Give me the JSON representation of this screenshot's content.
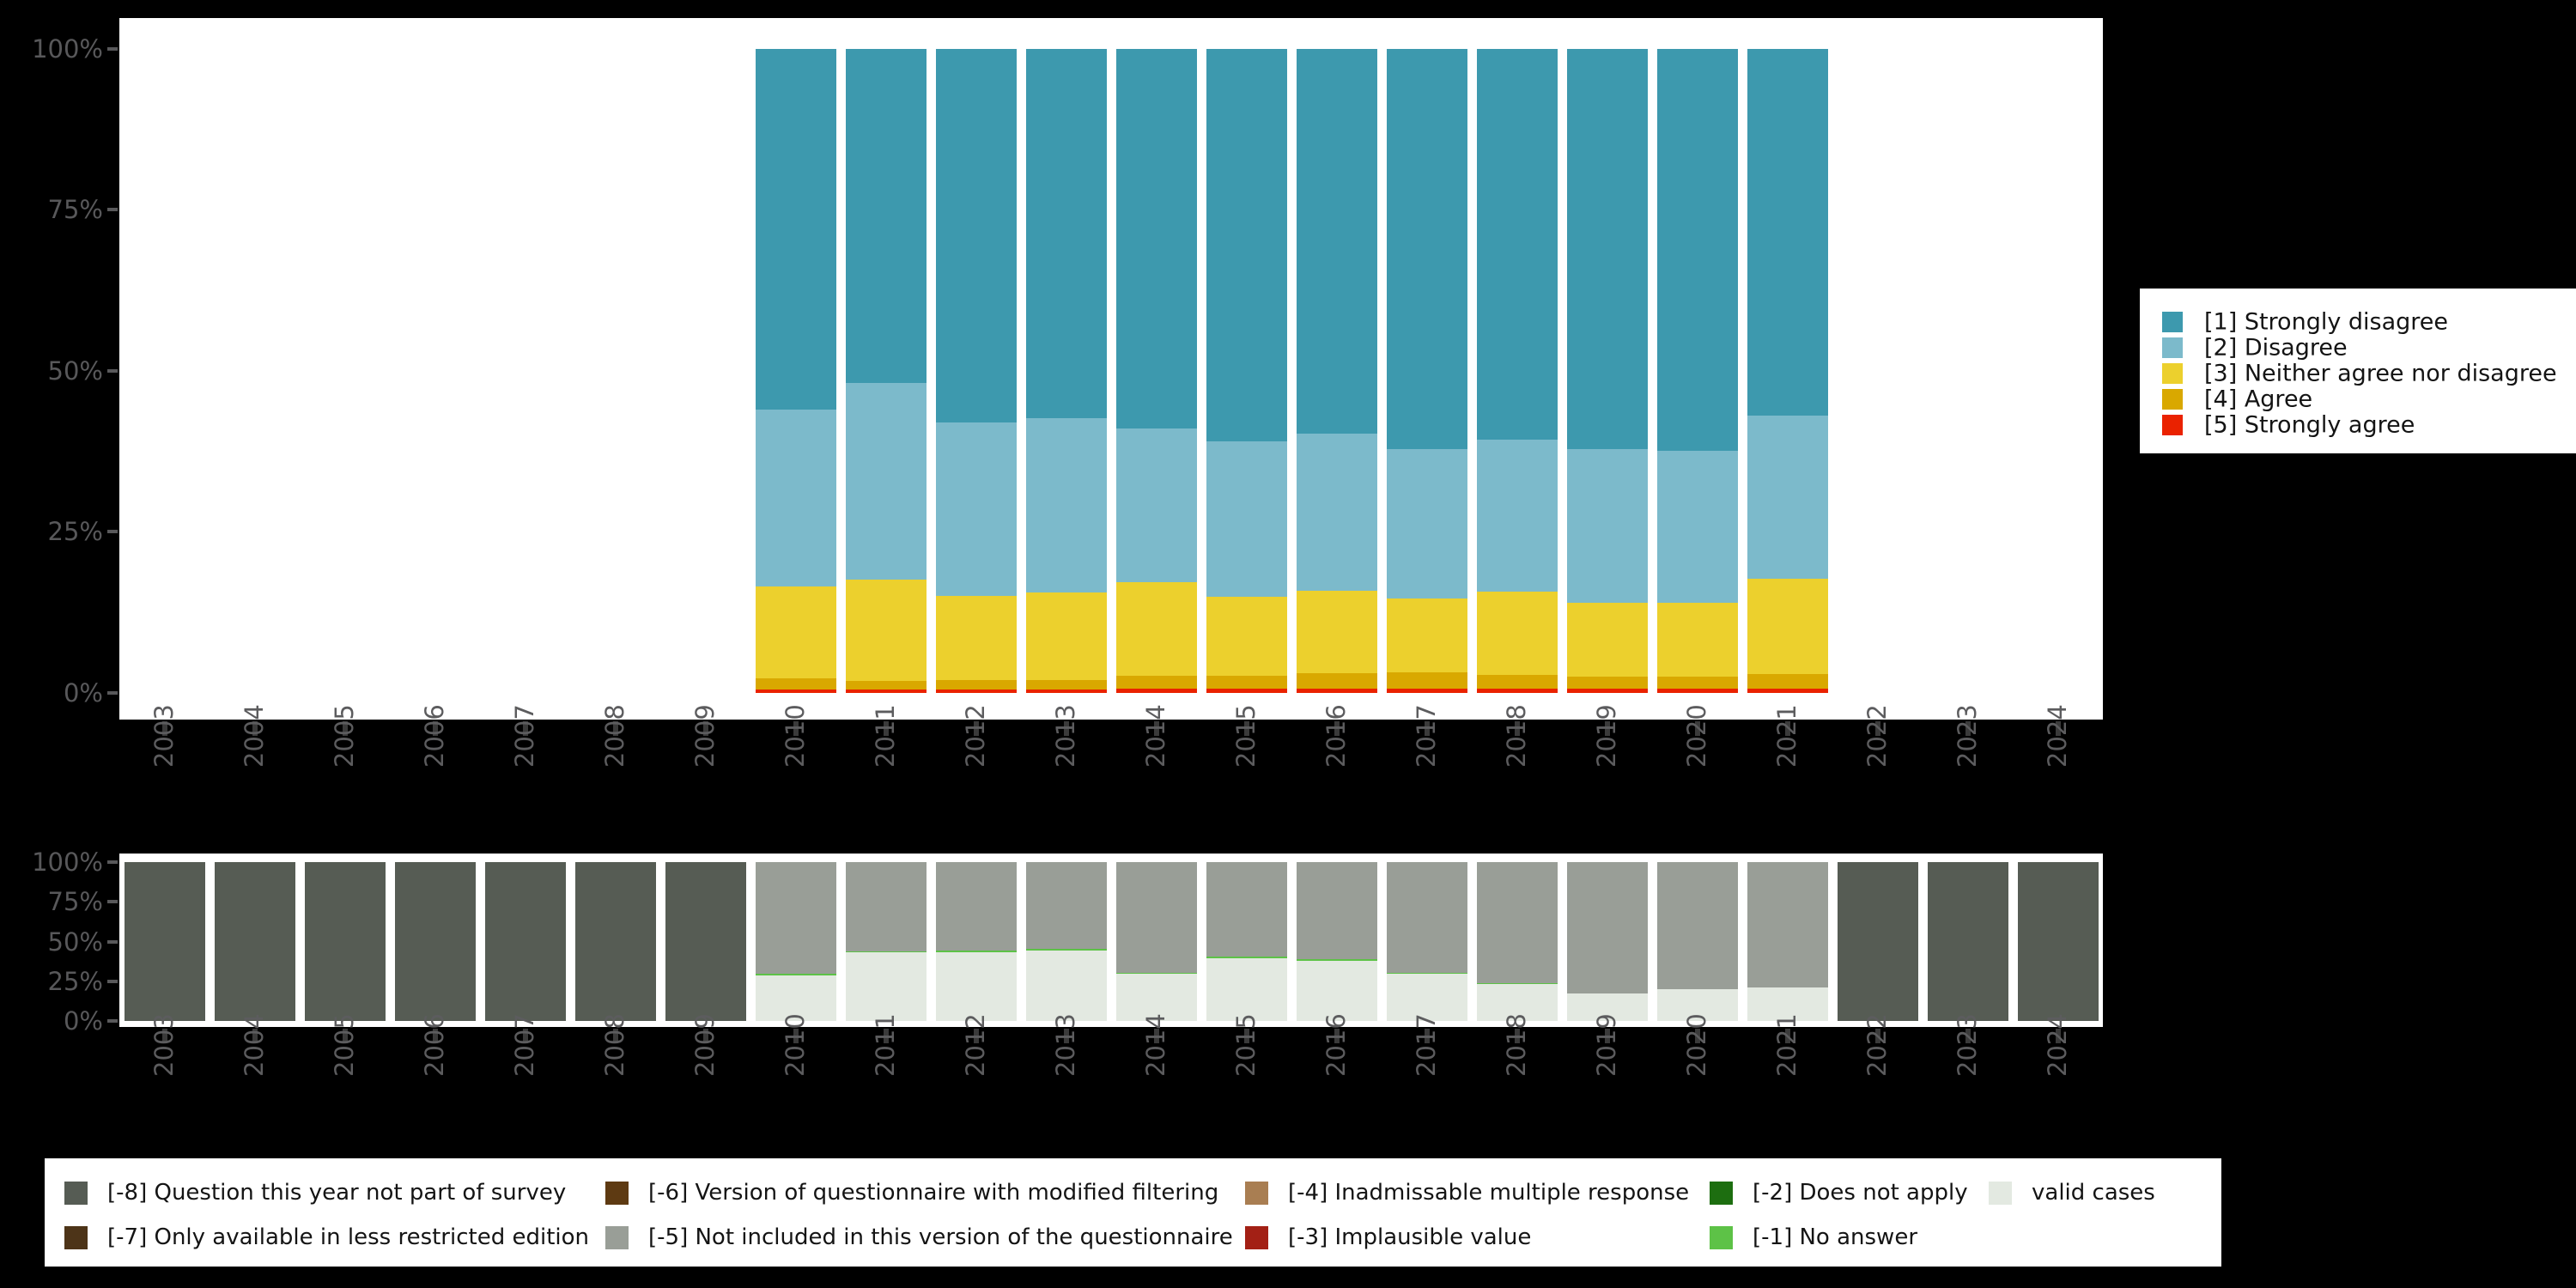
{
  "colors": {
    "background": "#000000",
    "panel": "#ffffff",
    "axis_text": "#58585a",
    "strongly_disagree": "#3d99ae",
    "disagree": "#7cbacb",
    "neither": "#ecd02d",
    "agree": "#d9a800",
    "strongly_agree": "#ea2200",
    "not_part_of_survey": "#565c54",
    "less_restricted": "#4d3418",
    "modified_filtering": "#5e3a12",
    "not_included": "#999e97",
    "inadmissable": "#a97e52",
    "implausible": "#a32015",
    "does_not_apply": "#1d6e10",
    "no_answer": "#5dc247",
    "valid_cases": "#e3e9e1"
  },
  "axes": {
    "y_tick_labels": [
      "100%",
      "75%",
      "50%",
      "25%",
      "0%"
    ],
    "x_tick_labels": [
      "2003",
      "2004",
      "2005",
      "2006",
      "2007",
      "2008",
      "2009",
      "2010",
      "2011",
      "2012",
      "2013",
      "2014",
      "2015",
      "2016",
      "2017",
      "2018",
      "2019",
      "2020",
      "2021",
      "2022",
      "2023",
      "2024"
    ]
  },
  "upper_legend": {
    "items": [
      {
        "label": "[1] Strongly disagree",
        "color": "#3d99ae"
      },
      {
        "label": "[2] Disagree",
        "color": "#7cbacb"
      },
      {
        "label": "[3] Neither agree nor disagree",
        "color": "#ecd02d"
      },
      {
        "label": "[4] Agree",
        "color": "#d9a800"
      },
      {
        "label": "[5] Strongly agree",
        "color": "#ea2200"
      }
    ]
  },
  "bottom_legend": {
    "columns": [
      [
        {
          "label": "[-8] Question this year not part of survey",
          "color": "#565c54"
        },
        {
          "label": "[-7] Only available in less restricted edition",
          "color": "#4d3418"
        }
      ],
      [
        {
          "label": "[-6] Version of questionnaire with modified filtering",
          "color": "#5e3a12"
        },
        {
          "label": "[-5] Not included in this version of the questionnaire",
          "color": "#999e97"
        }
      ],
      [
        {
          "label": "[-4] Inadmissable multiple response",
          "color": "#a97e52"
        },
        {
          "label": "[-3] Implausible value",
          "color": "#a32015"
        }
      ],
      [
        {
          "label": "[-2] Does not apply",
          "color": "#1d6e10"
        },
        {
          "label": "[-1] No answer",
          "color": "#5dc247"
        }
      ],
      [
        {
          "label": "valid cases",
          "color": "#e3e9e1"
        }
      ]
    ]
  },
  "chart_data": [
    {
      "type": "bar",
      "stacked": true,
      "title": "",
      "xlabel": "",
      "ylabel": "",
      "ylim": [
        0,
        100
      ],
      "y_ticks": [
        100,
        75,
        50,
        25,
        0
      ],
      "grid": false,
      "legend_position": "right",
      "categories": [
        "2003",
        "2004",
        "2005",
        "2006",
        "2007",
        "2008",
        "2009",
        "2010",
        "2011",
        "2012",
        "2013",
        "2014",
        "2015",
        "2016",
        "2017",
        "2018",
        "2019",
        "2020",
        "2021",
        "2022",
        "2023",
        "2024"
      ],
      "series": [
        {
          "name": "[5] Strongly agree",
          "color": "#ea2200",
          "values": [
            0,
            0,
            0,
            0,
            0,
            0,
            0,
            0.5,
            0.5,
            0.5,
            0.5,
            0.6,
            0.6,
            0.6,
            0.6,
            0.6,
            0.6,
            0.6,
            0.6,
            0,
            0,
            0
          ]
        },
        {
          "name": "[4] Agree",
          "color": "#d9a800",
          "values": [
            0,
            0,
            0,
            0,
            0,
            0,
            0,
            1.7,
            1.3,
            1.4,
            1.5,
            2.0,
            2.0,
            2.4,
            2.5,
            2.2,
            1.9,
            1.9,
            2.3,
            0,
            0,
            0
          ]
        },
        {
          "name": "[3] Neither agree nor disagree",
          "color": "#ecd02d",
          "values": [
            0,
            0,
            0,
            0,
            0,
            0,
            0,
            14.3,
            15.8,
            13.1,
            13.5,
            14.5,
            12.3,
            12.8,
            11.5,
            12.9,
            11.4,
            11.4,
            14.8,
            0,
            0,
            0
          ]
        },
        {
          "name": "[2] Disagree",
          "color": "#7cbacb",
          "values": [
            0,
            0,
            0,
            0,
            0,
            0,
            0,
            27.5,
            30.5,
            27.0,
            27.2,
            23.9,
            24.1,
            24.4,
            23.2,
            23.6,
            23.9,
            23.6,
            25.4,
            0,
            0,
            0
          ]
        },
        {
          "name": "[1] Strongly disagree",
          "color": "#3d99ae",
          "values": [
            0,
            0,
            0,
            0,
            0,
            0,
            0,
            56.0,
            51.9,
            58.0,
            57.3,
            59.0,
            61.0,
            59.8,
            62.2,
            60.7,
            62.2,
            62.5,
            56.9,
            0,
            0,
            0
          ]
        }
      ]
    },
    {
      "type": "bar",
      "stacked": true,
      "title": "",
      "xlabel": "",
      "ylabel": "",
      "ylim": [
        0,
        100
      ],
      "y_ticks": [
        100,
        75,
        50,
        25,
        0
      ],
      "grid": false,
      "legend_position": "bottom",
      "categories": [
        "2003",
        "2004",
        "2005",
        "2006",
        "2007",
        "2008",
        "2009",
        "2010",
        "2011",
        "2012",
        "2013",
        "2014",
        "2015",
        "2016",
        "2017",
        "2018",
        "2019",
        "2020",
        "2021",
        "2022",
        "2023",
        "2024"
      ],
      "series": [
        {
          "name": "valid cases",
          "color": "#e3e9e1",
          "values": [
            0,
            0,
            0,
            0,
            0,
            0,
            0,
            28.5,
            43.0,
            43.5,
            44.2,
            29.5,
            39.4,
            37.9,
            29.7,
            23.3,
            17.5,
            20.0,
            21.0,
            0,
            0,
            0
          ]
        },
        {
          "name": "[-1] No answer",
          "color": "#5dc247",
          "values": [
            0,
            0,
            0,
            0,
            0,
            0,
            0,
            1.0,
            1.0,
            1.0,
            1.0,
            1.0,
            0.9,
            0.9,
            0.8,
            0.7,
            0,
            0,
            0,
            0,
            0,
            0
          ]
        },
        {
          "name": "[-5] Not included in this version of the questionnaire",
          "color": "#999e97",
          "values": [
            0,
            0,
            0,
            0,
            0,
            0,
            0,
            70.5,
            56.0,
            55.5,
            54.8,
            69.5,
            59.7,
            61.2,
            69.5,
            76.0,
            82.5,
            80.0,
            79.0,
            0,
            0,
            0
          ]
        },
        {
          "name": "[-8] Question this year not part of survey",
          "color": "#565c54",
          "values": [
            100,
            100,
            100,
            100,
            100,
            100,
            100,
            0,
            0,
            0,
            0,
            0,
            0,
            0,
            0,
            0,
            0,
            0,
            0,
            100,
            100,
            100
          ]
        }
      ]
    }
  ]
}
